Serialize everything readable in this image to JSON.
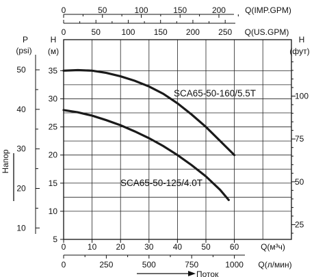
{
  "chart_data": {
    "type": "line",
    "x_unit": "Q(м³/ч)",
    "y_unit": "H (м)",
    "xlim": [
      0,
      84
    ],
    "ylim": [
      5,
      38
    ],
    "grid": true,
    "series": [
      {
        "name": "SCA65-50-160/5.5T",
        "x": [
          0,
          5,
          10,
          15,
          20,
          25,
          30,
          35,
          40,
          45,
          50,
          55,
          60
        ],
        "y": [
          35,
          35.1,
          35,
          34.6,
          34,
          33.2,
          32.2,
          30.9,
          29.2,
          27.2,
          25,
          22.5,
          20
        ]
      },
      {
        "name": "SCA65-50-125/4.0T",
        "x": [
          0,
          5,
          10,
          15,
          20,
          25,
          30,
          35,
          40,
          45,
          50,
          55,
          58
        ],
        "y": [
          28,
          27.6,
          27,
          26.2,
          25.3,
          24.2,
          23,
          21.6,
          20,
          18.2,
          16.2,
          13.8,
          12
        ]
      }
    ],
    "axes": {
      "bottom_main": {
        "label": "Q(м³ч)",
        "ticks": [
          "0",
          "10",
          "20",
          "30",
          "40",
          "50",
          "60"
        ]
      },
      "bottom_lpm": {
        "label": "Q(л/мин)",
        "ticks": [
          "0",
          "250",
          "500",
          "750",
          "1000"
        ]
      },
      "top_imp": {
        "label": "Q(IMP.GPM)",
        "ticks": [
          "0",
          "50",
          "100",
          "150",
          "200"
        ]
      },
      "top_us": {
        "label": "Q(US.GPM)",
        "ticks": [
          "0",
          "50",
          "100",
          "150",
          "200",
          "250"
        ]
      },
      "left_m": {
        "label_top": "H",
        "label_bottom": "(м)",
        "ticks": [
          "5",
          "10",
          "15",
          "20",
          "25",
          "30",
          "35"
        ]
      },
      "left_psi": {
        "label_top": "P",
        "label_bottom": "(psi)",
        "ticks": [
          "10",
          "20",
          "30",
          "40",
          "50"
        ]
      },
      "right_ft": {
        "label_top": "H",
        "label_bottom": "(фут)",
        "ticks": [
          "25",
          "50",
          "75",
          "100"
        ]
      }
    },
    "side_label": "Напор",
    "flow_label": "Поток",
    "colors": {
      "curve": "#1a1a1a",
      "grid": "#222222"
    }
  }
}
